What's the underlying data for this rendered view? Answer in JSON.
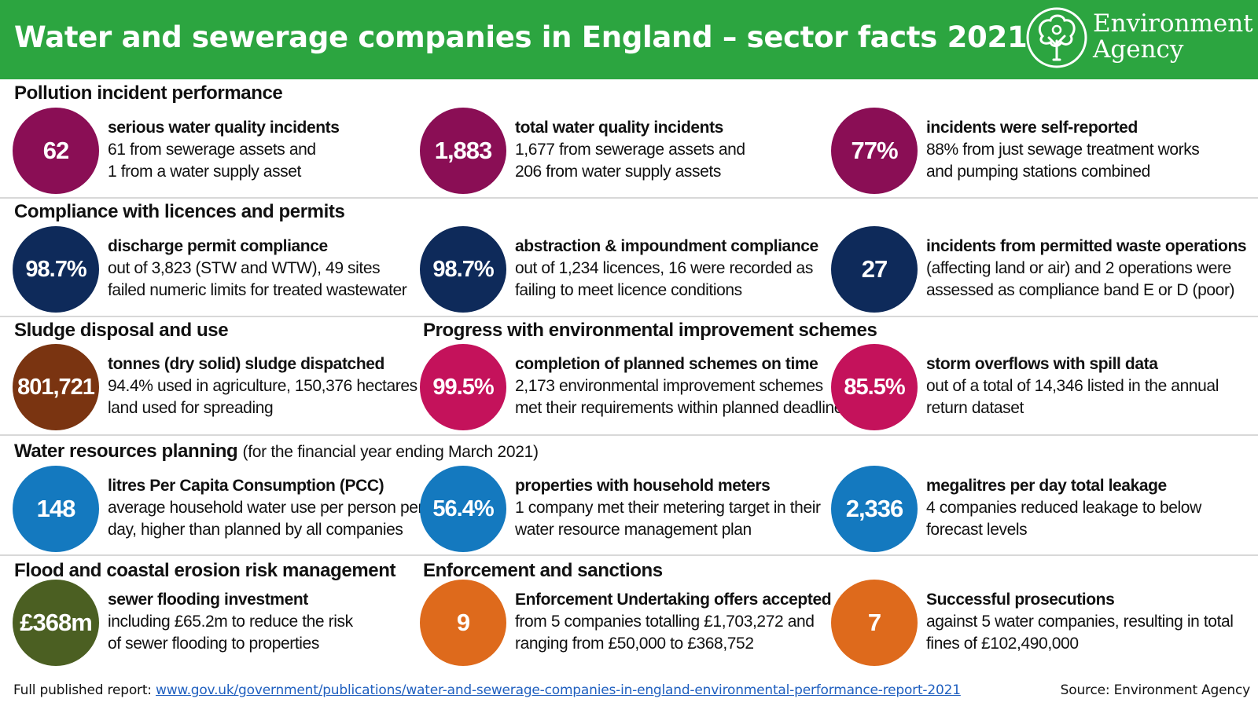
{
  "header": {
    "title": "Water and sewerage companies in England – sector facts 2021",
    "logo_line1": "Environment",
    "logo_line2": "Agency",
    "header_color": "#2ca540"
  },
  "sections": {
    "pollution": "Pollution incident performance",
    "compliance": "Compliance with licences and permits",
    "sludge": "Sludge disposal and use",
    "progress": "Progress with environmental improvement schemes",
    "water_resources": "Water resources planning",
    "water_resources_note": "(for the financial year ending March 2021)",
    "flood": "Flood and coastal erosion risk management",
    "enforcement": "Enforcement and sanctions"
  },
  "colors": {
    "pollution": "#8a0e55",
    "compliance": "#0e2a5a",
    "sludge": "#7a3411",
    "progress": "#c4125b",
    "water": "#1479bf",
    "flood": "#4b5f22",
    "enforcement": "#de6a1c"
  },
  "items": {
    "p1": {
      "value": "62",
      "head": "serious water quality incidents",
      "line1": "61 from sewerage assets and",
      "line2": "1 from a water supply asset"
    },
    "p2": {
      "value": "1,883",
      "head": "total water quality incidents",
      "line1": "1,677 from sewerage assets and",
      "line2": "206 from water supply assets"
    },
    "p3": {
      "value": "77%",
      "head": "incidents were self-reported",
      "line1": "88% from just sewage treatment works",
      "line2": "and pumping stations combined"
    },
    "c1": {
      "value": "98.7%",
      "head": "discharge permit compliance",
      "line1": "out of 3,823 (STW and WTW), 49 sites",
      "line2": "failed numeric limits for treated wastewater"
    },
    "c2": {
      "value": "98.7%",
      "head": "abstraction & impoundment compliance",
      "line1": "out of 1,234 licences, 16 were recorded as",
      "line2": "failing to meet licence conditions"
    },
    "c3": {
      "value": "27",
      "head": "incidents from permitted waste operations",
      "line1": "(affecting land or air) and 2 operations were",
      "line2": "assessed as compliance band E or D (poor)"
    },
    "s1": {
      "value": "801,721",
      "head": "tonnes (dry solid) sludge dispatched",
      "line1": "94.4% used in agriculture, 150,376 hectares",
      "line2": "land used for spreading"
    },
    "s2": {
      "value": "99.5%",
      "head": "completion of planned schemes on time",
      "line1": "2,173 environmental improvement schemes",
      "line2": "met their requirements within planned deadlines"
    },
    "s3": {
      "value": "85.5%",
      "head": "storm overflows with spill data",
      "line1": "out of a total of 14,346 listed in the annual",
      "line2": "return dataset"
    },
    "w1": {
      "value": "148",
      "head": "litres Per Capita Consumption (PCC)",
      "line1": "average household water use per person per",
      "line2": "day, higher than planned by all companies"
    },
    "w2": {
      "value": "56.4%",
      "head": "properties with household meters",
      "line1": "1 company met their metering target in their",
      "line2": "water resource management plan"
    },
    "w3": {
      "value": "2,336",
      "head": "megalitres per day total leakage",
      "line1": "4 companies reduced leakage to below",
      "line2": "forecast levels"
    },
    "f1": {
      "value": "£368m",
      "head": "sewer flooding investment",
      "line1": "including £65.2m to reduce the risk",
      "line2": "of sewer flooding to properties"
    },
    "e1": {
      "value": "9",
      "head": "Enforcement Undertaking offers accepted",
      "line1": "from 5 companies totalling £1,703,272 and",
      "line2": "ranging from £50,000 to £368,752"
    },
    "e2": {
      "value": "7",
      "head": "Successful prosecutions",
      "line1": "against 5 water companies, resulting in total",
      "line2": "fines of £102,490,000"
    }
  },
  "footer": {
    "label": "Full published report: ",
    "link": "www.gov.uk/government/publications/water-and-sewerage-companies-in-england-environmental-performance-report-2021",
    "source": "Source: Environment Agency"
  }
}
